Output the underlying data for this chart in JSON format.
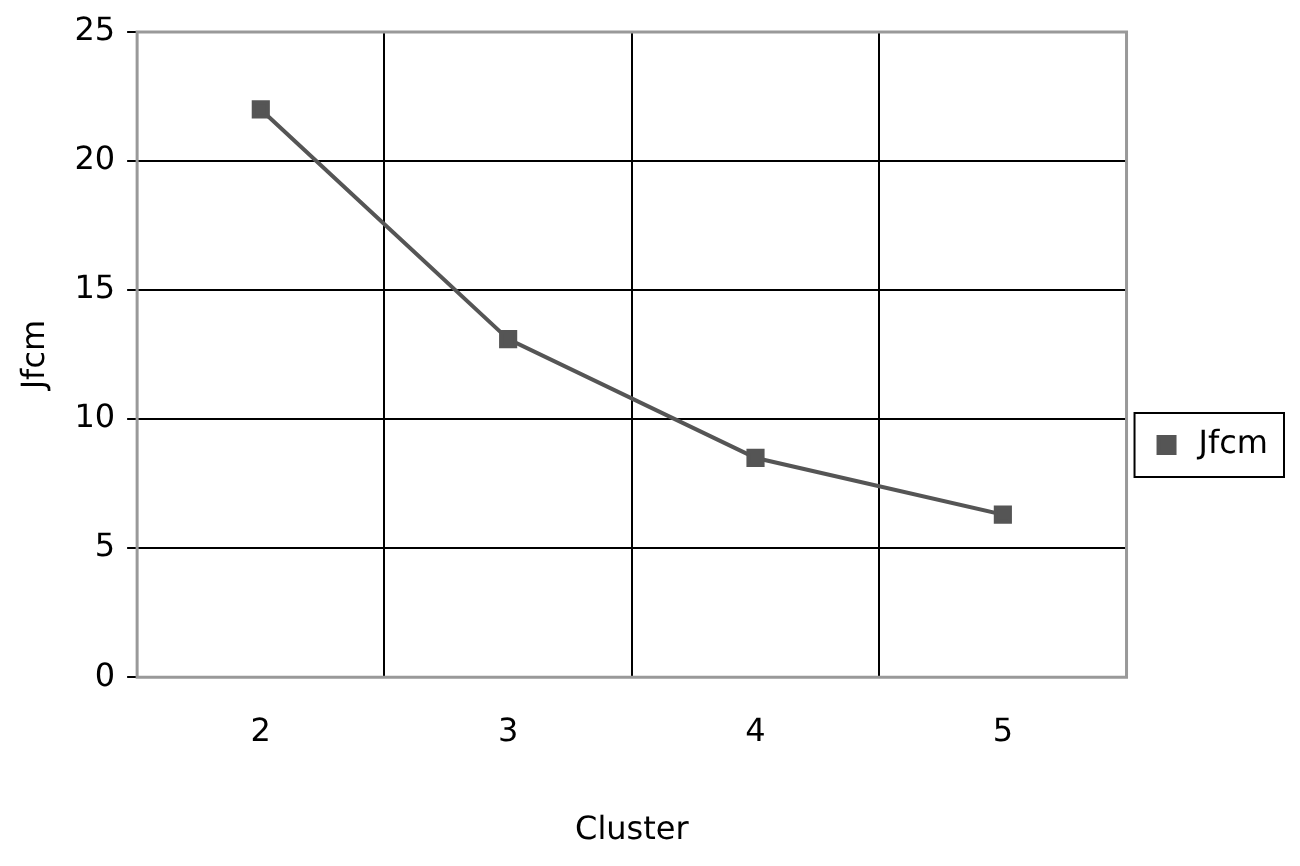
{
  "chart_data": {
    "type": "line",
    "xlabel": "Cluster",
    "ylabel": "Jfcm",
    "categories": [
      "2",
      "3",
      "4",
      "5"
    ],
    "series": [
      {
        "name": "Jfcm",
        "color": "#555555",
        "values": [
          22,
          13.1,
          8.5,
          6.3
        ]
      }
    ],
    "ylim": [
      0,
      25
    ],
    "yticks": [
      0,
      5,
      10,
      15,
      20,
      25
    ],
    "grid": true,
    "legend": "right",
    "marker": "square",
    "line_style": "solid"
  }
}
